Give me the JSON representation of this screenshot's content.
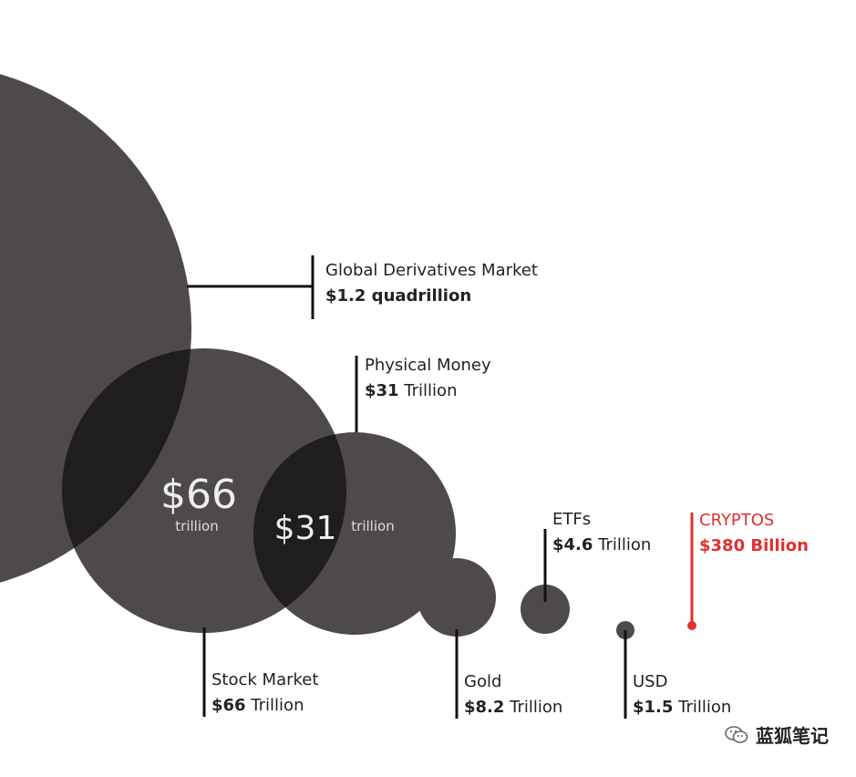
{
  "chart_data": {
    "type": "bubble",
    "items": [
      {
        "name": "Global Derivatives Market",
        "value_bold": "$1.2 quadrillion",
        "value_rest": "",
        "value_trillions": 1200
      },
      {
        "name": "Stock Market",
        "value_bold": "$66",
        "value_rest": " Trillion",
        "value_trillions": 66,
        "inner_value": "$66",
        "inner_unit": "trillion"
      },
      {
        "name": "Physical Money",
        "value_bold": "$31",
        "value_rest": " Trillion",
        "value_trillions": 31,
        "inner_value": "$31",
        "inner_unit": "trillion"
      },
      {
        "name": "Gold",
        "value_bold": "$8.2",
        "value_rest": " Trillion",
        "value_trillions": 8.2
      },
      {
        "name": "ETFs",
        "value_bold": "$4.6",
        "value_rest": " Trillion",
        "value_trillions": 4.6
      },
      {
        "name": "USD",
        "value_bold": "$1.5",
        "value_rest": " Trillion",
        "value_trillions": 1.5
      },
      {
        "name": "CRYPTOS",
        "value_bold": "$380 Billion",
        "value_rest": "",
        "value_trillions": 0.38,
        "highlight": true
      }
    ],
    "colors": {
      "bubble": "#4e4a4a",
      "overlap": "#1f1d1d",
      "highlight": "#e03030",
      "text": "#222222"
    }
  },
  "watermark": {
    "text": "蓝狐笔记",
    "icon": "wechat-icon"
  }
}
